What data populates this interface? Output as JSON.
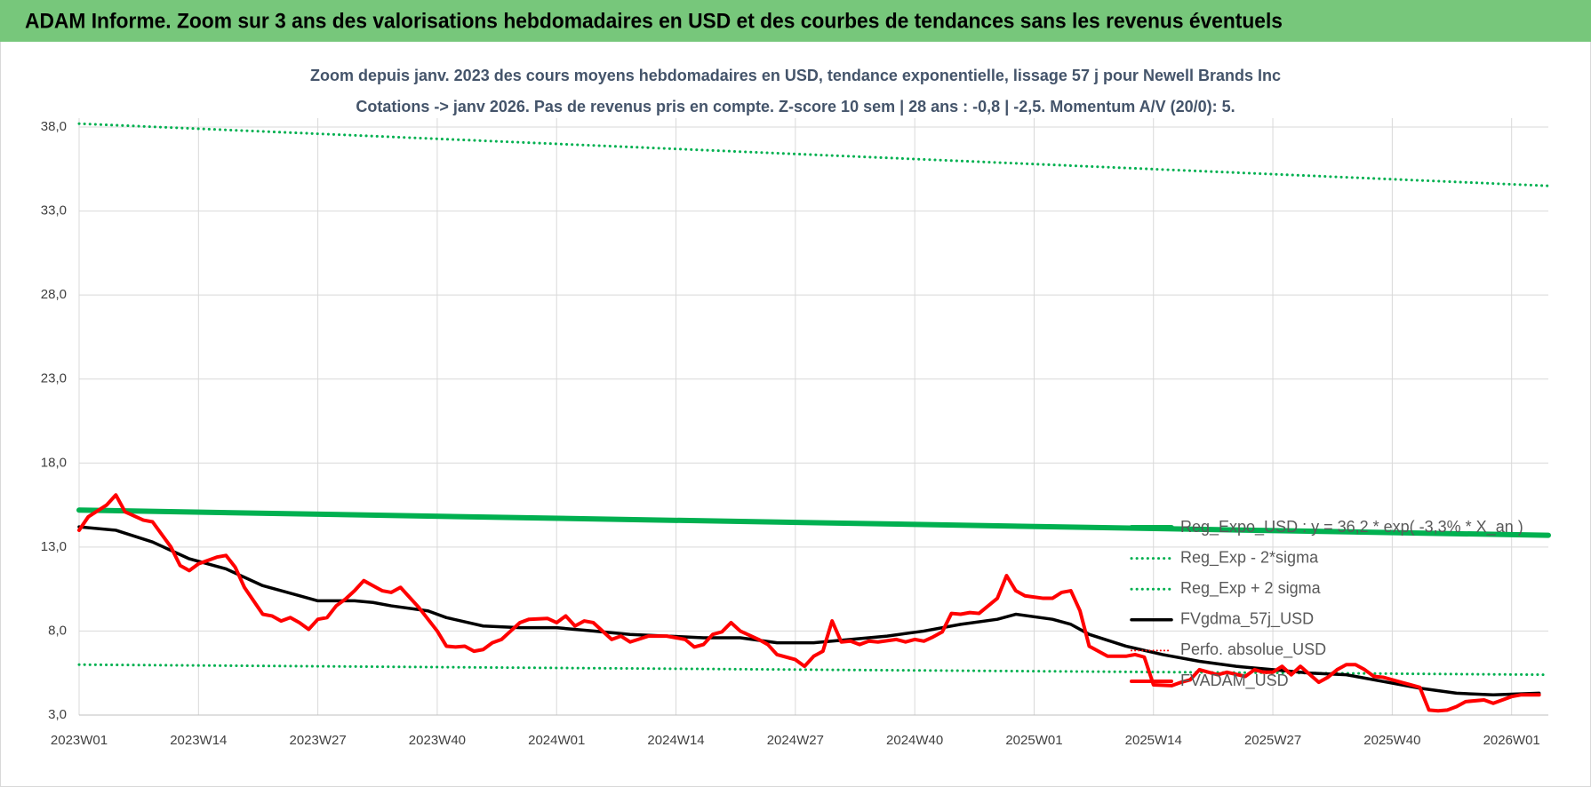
{
  "banner": {
    "title": "ADAM Informe. Zoom sur 3 ans des valorisations hebdomadaires en USD et des courbes de tendances sans les revenus éventuels"
  },
  "chart_data": {
    "type": "line",
    "title": "Zoom depuis janv. 2023 des cours moyens hebdomadaires en USD, tendance exponentielle, lissage 57 j pour Newell Brands Inc",
    "subtitle": "Cotations -> janv 2026. Pas de revenus pris en compte. Z-score 10 sem | 28 ans : -0,8 | -2,5. Momentum A/V (20/0): 5.",
    "xlim": [
      0,
      160
    ],
    "xticks": [
      {
        "value": 0,
        "label": "2023W01"
      },
      {
        "value": 13,
        "label": "2023W14"
      },
      {
        "value": 26,
        "label": "2023W27"
      },
      {
        "value": 39,
        "label": "2023W40"
      },
      {
        "value": 52,
        "label": "2024W01"
      },
      {
        "value": 65,
        "label": "2024W14"
      },
      {
        "value": 78,
        "label": "2024W27"
      },
      {
        "value": 91,
        "label": "2024W40"
      },
      {
        "value": 104,
        "label": "2025W01"
      },
      {
        "value": 117,
        "label": "2025W14"
      },
      {
        "value": 130,
        "label": "2025W27"
      },
      {
        "value": 143,
        "label": "2025W40"
      },
      {
        "value": 156,
        "label": "2026W01"
      }
    ],
    "ylim": [
      3,
      38
    ],
    "yticks": [
      {
        "value": 3,
        "label": "3,0"
      },
      {
        "value": 8,
        "label": "8,0"
      },
      {
        "value": 13,
        "label": "13,0"
      },
      {
        "value": 18,
        "label": "18,0"
      },
      {
        "value": 23,
        "label": "23,0"
      },
      {
        "value": 28,
        "label": "28,0"
      },
      {
        "value": 33,
        "label": "33,0"
      },
      {
        "value": 38,
        "label": "38,0"
      }
    ],
    "grid": true,
    "legend": "right",
    "series": [
      {
        "name": "Reg_Expo_USD : y = 36,2 * exp( -3,3% * X_an )",
        "color": "#00b050",
        "style": "solid",
        "width": 6,
        "x": [
          0,
          160
        ],
        "values": [
          15.2,
          13.7
        ]
      },
      {
        "name": "Reg_Exp - 2*sigma",
        "color": "#00b050",
        "style": "dotted",
        "width": 3,
        "x": [
          0,
          160
        ],
        "values": [
          6.0,
          5.4
        ]
      },
      {
        "name": "Reg_Exp + 2 sigma",
        "color": "#00b050",
        "style": "dotted",
        "width": 3,
        "x": [
          0,
          160
        ],
        "values": [
          38.2,
          34.5
        ]
      },
      {
        "name": "FVgdma_57j_USD",
        "color": "#000000",
        "style": "solid",
        "width": 3.5,
        "x": [
          0,
          4,
          8,
          12,
          16,
          20,
          24,
          26,
          30,
          32,
          34,
          38,
          40,
          44,
          48,
          52,
          56,
          60,
          64,
          68,
          72,
          76,
          80,
          84,
          88,
          92,
          96,
          100,
          102,
          106,
          108,
          110,
          114,
          118,
          122,
          126,
          130,
          134,
          138,
          142,
          146,
          150,
          154,
          159
        ],
        "values": [
          14.2,
          14.0,
          13.3,
          12.3,
          11.7,
          10.7,
          10.1,
          9.8,
          9.8,
          9.7,
          9.5,
          9.2,
          8.8,
          8.3,
          8.2,
          8.2,
          8.0,
          7.8,
          7.7,
          7.6,
          7.6,
          7.3,
          7.3,
          7.5,
          7.7,
          8.0,
          8.4,
          8.7,
          9.0,
          8.7,
          8.4,
          7.8,
          7.1,
          6.6,
          6.2,
          5.9,
          5.7,
          5.5,
          5.4,
          5.0,
          4.6,
          4.3,
          4.2,
          4.3
        ]
      },
      {
        "name": "Perfo. absolue_USD",
        "color": "#ff0000",
        "style": "dotted",
        "width": 2
      },
      {
        "name": "FVADAM_USD",
        "color": "#ff0000",
        "style": "solid",
        "width": 4,
        "x": [
          0,
          1,
          3,
          4,
          5,
          7,
          8,
          10,
          11,
          12,
          13,
          15,
          16,
          17,
          18,
          19,
          20,
          21,
          22,
          23,
          24,
          25,
          26,
          27,
          28,
          29,
          30,
          31,
          32,
          33,
          34,
          35,
          36,
          37,
          38,
          39,
          40,
          41,
          42,
          43,
          44,
          45,
          46,
          47,
          48,
          49,
          51,
          52,
          53,
          54,
          55,
          56,
          58,
          59,
          60,
          62,
          64,
          66,
          67,
          68,
          69,
          70,
          71,
          72,
          74,
          75,
          76,
          78,
          79,
          80,
          81,
          82,
          83,
          84,
          85,
          86,
          87,
          89,
          90,
          91,
          92,
          93,
          94,
          95,
          96,
          97,
          98,
          99,
          100,
          101,
          102,
          103,
          105,
          106,
          107,
          108,
          109,
          110,
          111,
          112,
          114,
          115,
          116,
          117,
          119,
          120,
          121,
          122,
          123,
          124,
          125,
          127,
          128,
          129,
          130,
          131,
          132,
          133,
          135,
          136,
          137,
          138,
          139,
          140,
          141,
          142,
          144,
          145,
          146,
          147,
          148,
          149,
          150,
          151,
          153,
          154,
          155,
          156,
          157,
          159
        ],
        "values": [
          14.0,
          14.8,
          15.5,
          16.1,
          15.1,
          14.6,
          14.5,
          13.0,
          11.9,
          11.6,
          12.0,
          12.4,
          12.5,
          11.8,
          10.6,
          9.8,
          9.0,
          8.9,
          8.6,
          8.8,
          8.5,
          8.1,
          8.7,
          8.8,
          9.5,
          9.9,
          10.4,
          11.0,
          10.7,
          10.4,
          10.3,
          10.6,
          10.0,
          9.4,
          8.7,
          8.0,
          7.1,
          7.05,
          7.1,
          6.8,
          6.9,
          7.3,
          7.5,
          8.0,
          8.5,
          8.7,
          8.75,
          8.5,
          8.9,
          8.3,
          8.6,
          8.5,
          7.5,
          7.7,
          7.35,
          7.7,
          7.7,
          7.5,
          7.05,
          7.2,
          7.8,
          7.95,
          8.5,
          8.0,
          7.5,
          7.2,
          6.6,
          6.3,
          5.9,
          6.5,
          6.8,
          8.6,
          7.35,
          7.4,
          7.2,
          7.4,
          7.35,
          7.5,
          7.35,
          7.5,
          7.4,
          7.65,
          7.95,
          9.05,
          9.0,
          9.1,
          9.05,
          9.5,
          9.95,
          11.3,
          10.4,
          10.1,
          9.95,
          9.95,
          10.3,
          10.4,
          9.2,
          7.1,
          6.8,
          6.5,
          6.5,
          6.6,
          6.45,
          4.8,
          4.75,
          4.95,
          5.1,
          5.7,
          5.55,
          5.4,
          5.55,
          5.3,
          5.7,
          5.55,
          5.55,
          5.9,
          5.4,
          5.9,
          4.95,
          5.25,
          5.7,
          6.0,
          6.0,
          5.7,
          5.3,
          5.25,
          4.95,
          4.8,
          4.65,
          3.3,
          3.25,
          3.3,
          3.5,
          3.8,
          3.9,
          3.7,
          3.9,
          4.1,
          4.2,
          4.2
        ]
      }
    ]
  }
}
